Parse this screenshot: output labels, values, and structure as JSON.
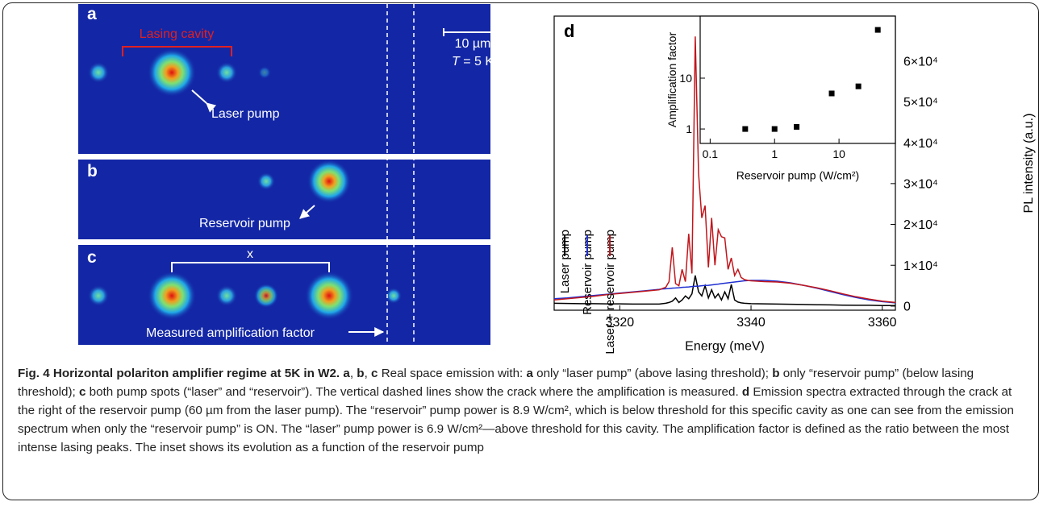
{
  "panels": {
    "a": {
      "label": "a",
      "cavity": "Lasing cavity",
      "arrow": "Laser pump",
      "scale_bar": "10 µm",
      "temperature_symbol": "T",
      "temperature": " = 5 K"
    },
    "b": {
      "label": "b",
      "arrow": "Reservoir pump"
    },
    "c": {
      "label": "c",
      "distance": "x",
      "arrow": "Measured amplification factor"
    }
  },
  "chart_data": [
    {
      "type": "line",
      "label": "d",
      "xlabel": "Energy (meV)",
      "ylabel": "PL intensity (a.u.)",
      "y_axis_side": "right",
      "x": [
        3310,
        3312,
        3314,
        3316,
        3318,
        3320,
        3322,
        3324,
        3326,
        3326.5,
        3327,
        3327.5,
        3328,
        3328.5,
        3329,
        3329.5,
        3330,
        3330.5,
        3331,
        3331.5,
        3332,
        3332.5,
        3333,
        3333.5,
        3334,
        3334.5,
        3335,
        3335.5,
        3336,
        3336.5,
        3337,
        3337.5,
        3338,
        3338.5,
        3339,
        3339.5,
        3340,
        3342,
        3344,
        3346,
        3348,
        3350,
        3352,
        3354,
        3356,
        3358,
        3360,
        3362
      ],
      "series": [
        {
          "name": "Laser pump",
          "color": "#000000",
          "values": [
            700,
            650,
            600,
            600,
            550,
            550,
            500,
            500,
            500,
            600,
            700,
            900,
            1200,
            2000,
            900,
            1500,
            2500,
            1800,
            3000,
            7500,
            3500,
            2500,
            5000,
            2000,
            4000,
            2000,
            3000,
            1500,
            3500,
            1800,
            5300,
            1500,
            1000,
            800,
            700,
            650,
            600,
            550,
            500,
            450,
            400,
            350,
            300,
            250,
            200,
            200,
            150,
            150
          ]
        },
        {
          "name": "Reservoir pump",
          "color": "#1f2fd0",
          "values": [
            1800,
            2000,
            2300,
            2600,
            2900,
            3200,
            3500,
            3800,
            4100,
            4200,
            4250,
            4300,
            4400,
            4450,
            4500,
            4600,
            4650,
            4700,
            4800,
            4850,
            4900,
            5000,
            5050,
            5100,
            5200,
            5300,
            5400,
            5500,
            5600,
            5700,
            5800,
            5900,
            6000,
            6100,
            6200,
            6250,
            6300,
            6300,
            6100,
            5700,
            5100,
            4400,
            3600,
            2800,
            2100,
            1500,
            1100,
            800
          ]
        },
        {
          "name": "Laser + reservoir pump",
          "color": "#c0161c",
          "values": [
            1500,
            1800,
            2100,
            2400,
            2800,
            3100,
            3400,
            3700,
            4000,
            4300,
            4600,
            6000,
            14400,
            5500,
            5000,
            9000,
            6000,
            17700,
            8000,
            66000,
            32500,
            21600,
            24600,
            9500,
            21600,
            10000,
            18700,
            17000,
            16700,
            9000,
            11800,
            7500,
            9000,
            7000,
            6500,
            6300,
            6200,
            6000,
            5900,
            5600,
            5100,
            4500,
            3800,
            3000,
            2300,
            1700,
            1200,
            900
          ]
        }
      ],
      "xlim": [
        3310,
        3362
      ],
      "xticks": [
        3320,
        3340,
        3360
      ],
      "ylim": [
        -1000,
        71000
      ],
      "yticks": [
        0,
        {
          "value": 10000,
          "label": "1×10⁴"
        },
        {
          "value": 20000,
          "label": "2×10⁴"
        },
        {
          "value": 30000,
          "label": "3×10⁴"
        },
        {
          "value": 40000,
          "label": "4×10⁴"
        },
        {
          "value": 50000,
          "label": "5×10⁴"
        },
        {
          "value": 60000,
          "label": "6×10⁴"
        }
      ]
    },
    {
      "type": "scatter",
      "xlabel": "Reservoir pump (W/cm²)",
      "ylabel": "Amplification factor",
      "y_axis_side": "left",
      "log_x": true,
      "log_y": true,
      "color": "#000000",
      "x": [
        0.35,
        1,
        2.2,
        7.7,
        20,
        40
      ],
      "values": [
        1,
        1,
        1.1,
        5,
        6.9,
        89
      ],
      "xlim": [
        0.07,
        75
      ],
      "xticks": [
        0.1,
        1,
        10
      ],
      "ylim": [
        0.52,
        166
      ],
      "yticks": [
        1,
        10
      ]
    }
  ],
  "caption": {
    "runs": [
      {
        "text": "Fig. 4 Horizontal polariton amplifier regime at 5K in W2. a",
        "bold": true
      },
      {
        "text": ", "
      },
      {
        "text": "b",
        "bold": true
      },
      {
        "text": ", "
      },
      {
        "text": "c",
        "bold": true
      },
      {
        "text": " Real space emission with: "
      },
      {
        "text": "a",
        "bold": true
      },
      {
        "text": " only “laser pump” (above lasing threshold); "
      },
      {
        "text": "b",
        "bold": true
      },
      {
        "text": " only “reservoir pump” (below lasing threshold); "
      },
      {
        "text": "c",
        "bold": true
      },
      {
        "text": " both pump spots (“laser” and “reservoir”). The vertical dashed lines show the crack where the amplification is measured. "
      },
      {
        "text": "d",
        "bold": true
      },
      {
        "text": " Emission spectra extracted through the crack at the right of the reservoir pump (60 µm from the laser pump). The “reservoir” pump power is 8.9 W/cm², which is below threshold for this specific cavity as one can see from the emission spectrum when only the “reservoir pump” is ON. The “laser” pump power is 6.9 W/cm²—above threshold for this cavity. The amplification factor is defined as the ratio between the most intense lasing peaks. The inset shows its evolution as a function of the reservoir pump"
      }
    ]
  }
}
